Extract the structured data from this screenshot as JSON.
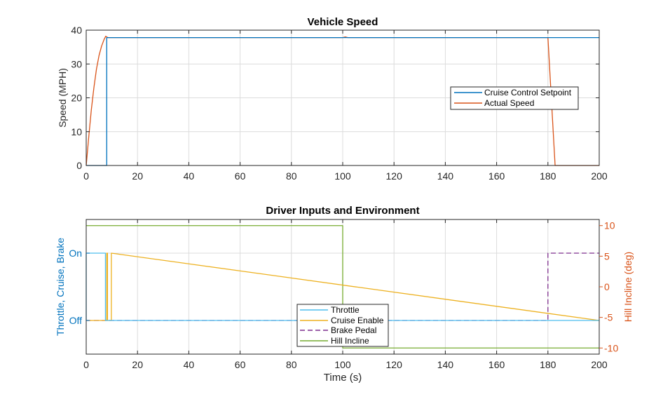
{
  "colors": {
    "blue": "#0072bd",
    "orange": "#d95319",
    "yellow": "#edb120",
    "purple": "#7e2f8e",
    "green": "#77ac30",
    "cyan": "#4dbeee",
    "grid": "#dcdcdc",
    "axis": "#262626"
  },
  "chart_data": [
    {
      "type": "line",
      "title": "Vehicle Speed",
      "xlabel": "",
      "ylabel": "Speed (MPH)",
      "xlim": [
        0,
        200
      ],
      "ylim": [
        0,
        40
      ],
      "xticks": [
        0,
        20,
        40,
        60,
        80,
        100,
        120,
        140,
        160,
        180,
        200
      ],
      "yticks": [
        0,
        10,
        20,
        30,
        40
      ],
      "grid": true,
      "legend": "middle-right",
      "series": [
        {
          "name": "Cruise Control Setpoint",
          "color": "#0072bd",
          "style": "solid",
          "x": [
            0,
            8,
            8,
            200
          ],
          "y": [
            0,
            0,
            37.8,
            37.8
          ]
        },
        {
          "name": "Actual Speed",
          "color": "#d95319",
          "style": "solid",
          "x": [
            0,
            1,
            2,
            3,
            4,
            5,
            6,
            7,
            7.6,
            8,
            8.5,
            10,
            100,
            101,
            102,
            180,
            182.8,
            183,
            200
          ],
          "y": [
            0,
            8.5,
            16.5,
            23,
            28.5,
            32.5,
            35.3,
            37.3,
            38.2,
            38,
            37.8,
            37.8,
            37.8,
            38,
            37.8,
            37.8,
            0,
            0,
            0
          ]
        }
      ]
    },
    {
      "type": "line",
      "title": "Driver Inputs and Environment",
      "xlabel": "Time (s)",
      "ylabel": "Throttle, Cruise, Brake",
      "ylabel_right": "Hill Incline (deg)",
      "xlim": [
        0,
        200
      ],
      "ylim_left": [
        -0.5,
        1.5
      ],
      "ylim_right": [
        -11,
        11
      ],
      "xticks": [
        0,
        20,
        40,
        60,
        80,
        100,
        120,
        140,
        160,
        180,
        200
      ],
      "yticks_left": [
        {
          "value": 0,
          "label": "Off"
        },
        {
          "value": 1,
          "label": "On"
        }
      ],
      "yticks_right": [
        -10,
        -5,
        0,
        5,
        10
      ],
      "grid": true,
      "legend": "bottom-center",
      "series": [
        {
          "name": "Throttle",
          "color": "#4dbeee",
          "style": "solid",
          "axis": "left",
          "x": [
            0,
            0,
            7.5,
            7.5,
            200
          ],
          "y": [
            0,
            1,
            1,
            0,
            0
          ]
        },
        {
          "name": "Cruise Enable",
          "color": "#edb120",
          "style": "solid",
          "axis": "left",
          "x": [
            0,
            8,
            8,
            8.3,
            8.3,
            9.8,
            9.8,
            200
          ],
          "y": [
            0,
            0,
            1,
            1,
            0,
            0,
            1,
            0
          ]
        },
        {
          "name": "Brake Pedal",
          "color": "#7e2f8e",
          "style": "dashed",
          "axis": "left",
          "x": [
            0,
            180,
            180,
            200
          ],
          "y": [
            0,
            0,
            1,
            1
          ]
        },
        {
          "name": "Hill Incline",
          "color": "#77ac30",
          "style": "solid",
          "axis": "right",
          "x": [
            0,
            100,
            100,
            200
          ],
          "y": [
            10,
            10,
            -10,
            -10
          ]
        }
      ]
    }
  ]
}
